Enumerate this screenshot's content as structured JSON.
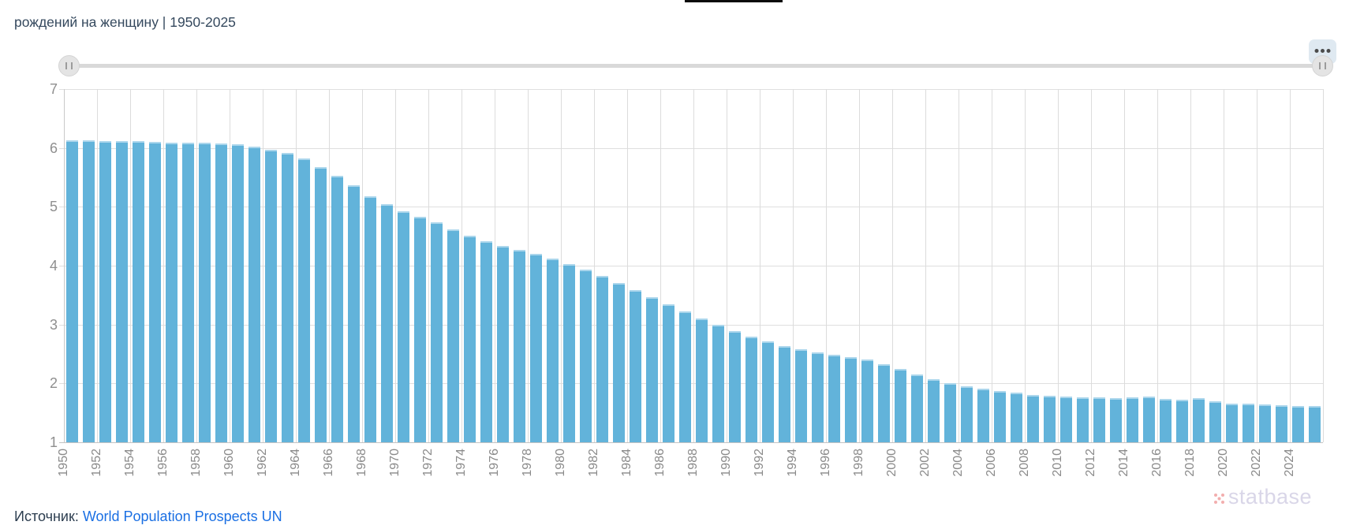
{
  "header": {
    "title": "рождений на женщину | 1950-2025"
  },
  "range_slider": {
    "left_handle": "drag-handle",
    "right_handle": "drag-handle",
    "menu_icon": "kebab-menu"
  },
  "chart_data": {
    "type": "bar",
    "title": "рождений на женщину | 1950-2025",
    "xlabel": "",
    "ylabel": "",
    "ylim": [
      1,
      7
    ],
    "yticks": [
      1,
      2,
      3,
      4,
      5,
      6,
      7
    ],
    "grid": true,
    "bar_color": "#62b3da",
    "bar_top_highlight": "#abd6ec",
    "gridline_color": "#dfdfdf",
    "axis_color": "#c3c3c3",
    "tick_label_color": "#8a8a8a",
    "xtick_labels": [
      "1950",
      "1952",
      "1954",
      "1956",
      "1958",
      "1960",
      "1962",
      "1964",
      "1966",
      "1968",
      "1970",
      "1972",
      "1974",
      "1976",
      "1978",
      "1980",
      "1982",
      "1984",
      "1986",
      "1988",
      "1990",
      "1992",
      "1994",
      "1996",
      "1998",
      "2000",
      "2002",
      "2004",
      "2006",
      "2008",
      "2010",
      "2012",
      "2014",
      "2016",
      "2018",
      "2020",
      "2022",
      "2024"
    ],
    "categories": [
      1950,
      1951,
      1952,
      1953,
      1954,
      1955,
      1956,
      1957,
      1958,
      1959,
      1960,
      1961,
      1962,
      1963,
      1964,
      1965,
      1966,
      1967,
      1968,
      1969,
      1970,
      1971,
      1972,
      1973,
      1974,
      1975,
      1976,
      1977,
      1978,
      1979,
      1980,
      1981,
      1982,
      1983,
      1984,
      1985,
      1986,
      1987,
      1988,
      1989,
      1990,
      1991,
      1992,
      1993,
      1994,
      1995,
      1996,
      1997,
      1998,
      1999,
      2000,
      2001,
      2002,
      2003,
      2004,
      2005,
      2006,
      2007,
      2008,
      2009,
      2010,
      2011,
      2012,
      2013,
      2014,
      2015,
      2016,
      2017,
      2018,
      2019,
      2020,
      2021,
      2022,
      2023,
      2024,
      2025
    ],
    "values": [
      6.13,
      6.13,
      6.12,
      6.11,
      6.11,
      6.1,
      6.09,
      6.09,
      6.09,
      6.08,
      6.06,
      6.02,
      5.97,
      5.91,
      5.82,
      5.68,
      5.53,
      5.36,
      5.18,
      5.04,
      4.93,
      4.83,
      4.73,
      4.62,
      4.51,
      4.42,
      4.34,
      4.27,
      4.2,
      4.12,
      4.03,
      3.93,
      3.82,
      3.71,
      3.59,
      3.47,
      3.35,
      3.22,
      3.1,
      2.99,
      2.89,
      2.79,
      2.71,
      2.64,
      2.58,
      2.53,
      2.49,
      2.45,
      2.4,
      2.32,
      2.24,
      2.15,
      2.07,
      2.0,
      1.95,
      1.91,
      1.87,
      1.84,
      1.81,
      1.79,
      1.78,
      1.77,
      1.76,
      1.75,
      1.76,
      1.78,
      1.73,
      1.72,
      1.75,
      1.7,
      1.66,
      1.65,
      1.64,
      1.63,
      1.62,
      1.61
    ]
  },
  "footer": {
    "source_label": "Источник:",
    "source_link": "World Population Prospects UN",
    "watermark": "statbase"
  }
}
